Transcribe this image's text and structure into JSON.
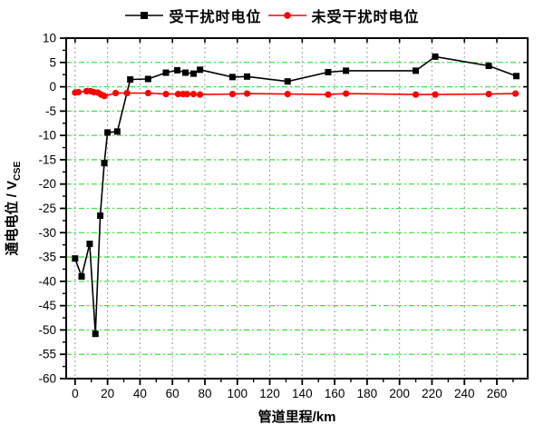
{
  "legend": {
    "items": [
      {
        "label": "受干扰时电位",
        "color": "#000000",
        "marker": "square"
      },
      {
        "label": "未受干扰时电位",
        "color": "#ff0000",
        "marker": "circle"
      }
    ]
  },
  "colors": {
    "h_grid": "#3fe43f",
    "v_grid": "#9c9c9c",
    "axis": "#000000",
    "series_disturbed": "#000000",
    "series_undisturbed": "#ff0000"
  },
  "chart_data": {
    "type": "line",
    "title": "",
    "xlabel": "管道里程/km",
    "ylabel": "通电电位 / V",
    "ylabel_main": "通电电位 / V",
    "ylabel_sub": "CSE",
    "xlim": [
      -5.5,
      279
    ],
    "ylim": [
      -60,
      10
    ],
    "x_tick_values": [
      0,
      20,
      40,
      60,
      80,
      100,
      120,
      140,
      160,
      180,
      200,
      220,
      240,
      260
    ],
    "y_tick_values": [
      10,
      5,
      0,
      -5,
      -10,
      -15,
      -20,
      -25,
      -30,
      -35,
      -40,
      -45,
      -50,
      -55,
      -60
    ],
    "x_minor_offset": 10,
    "y_minor_offset": -2.5,
    "grid": {
      "horizontal": "green dashed every 5",
      "vertical": "gray dashed every 20"
    },
    "legend_position": "top-center",
    "series": [
      {
        "name": "受干扰时电位",
        "color": "#000000",
        "marker": "square",
        "points": [
          [
            0,
            -35.3
          ],
          [
            4,
            -39.0
          ],
          [
            9,
            -32.3
          ],
          [
            12.5,
            -50.8
          ],
          [
            15.5,
            -26.5
          ],
          [
            18,
            -15.7
          ],
          [
            20,
            -9.4
          ],
          [
            26,
            -9.2
          ],
          [
            34,
            1.5
          ],
          [
            45,
            1.6
          ],
          [
            56,
            2.9
          ],
          [
            63,
            3.4
          ],
          [
            68,
            2.9
          ],
          [
            73,
            2.7
          ],
          [
            77,
            3.5
          ],
          [
            97,
            2.0
          ],
          [
            106,
            2.1
          ],
          [
            131,
            1.1
          ],
          [
            156,
            3.0
          ],
          [
            167,
            3.3
          ],
          [
            210,
            3.3
          ],
          [
            222,
            6.2
          ],
          [
            255,
            4.3
          ],
          [
            272,
            2.2
          ]
        ]
      },
      {
        "name": "未受干扰时电位",
        "color": "#ff0000",
        "marker": "circle",
        "points": [
          [
            0,
            -1.2
          ],
          [
            2,
            -1.1
          ],
          [
            7,
            -0.9
          ],
          [
            9.5,
            -0.9
          ],
          [
            11.5,
            -1.1
          ],
          [
            14,
            -1.2
          ],
          [
            16,
            -1.6
          ],
          [
            18,
            -1.9
          ],
          [
            25,
            -1.3
          ],
          [
            32,
            -1.3
          ],
          [
            45,
            -1.3
          ],
          [
            56,
            -1.5
          ],
          [
            63.5,
            -1.5
          ],
          [
            66.5,
            -1.5
          ],
          [
            69,
            -1.5
          ],
          [
            73,
            -1.5
          ],
          [
            77,
            -1.6
          ],
          [
            97,
            -1.5
          ],
          [
            106,
            -1.4
          ],
          [
            131,
            -1.5
          ],
          [
            156,
            -1.6
          ],
          [
            167,
            -1.4
          ],
          [
            210,
            -1.6
          ],
          [
            222,
            -1.6
          ],
          [
            255,
            -1.5
          ],
          [
            271.5,
            -1.4
          ]
        ]
      }
    ]
  }
}
